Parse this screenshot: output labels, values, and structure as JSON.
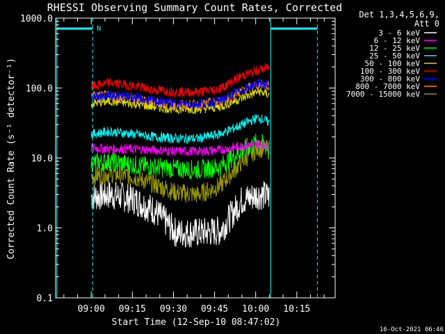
{
  "chart_data": {
    "type": "line",
    "title": "RHESSI Observing Summary Count Rates, Corrected",
    "xlabel": "Start Time (12-Sep-10 08:47:02)",
    "ylabel": "Corrected Count Rate (s⁻¹ detector⁻¹)",
    "yscale": "log",
    "ylim": [
      0.1,
      1000
    ],
    "xlim_min_after_start": [
      0,
      102
    ],
    "ytick_labels": [
      "0.1",
      "1.0",
      "10.0",
      "100.0",
      "1000.0"
    ],
    "xtick_labels": [
      "09:00",
      "09:15",
      "09:30",
      "09:45",
      "10:00",
      "10:15"
    ],
    "xtick_min_after_start": [
      13,
      28,
      43,
      58,
      73,
      88
    ],
    "grid": false,
    "legend_position": "top-right",
    "legend_header": [
      "Det 1,3,4,5,6,9,",
      "Att 0"
    ],
    "footer_timestamp": "16-Oct-2021 06:46",
    "night_marker": "N",
    "series": [
      {
        "name": "3 - 6 keV",
        "color": "#ffffff",
        "x": [
          13,
          20,
          28,
          36,
          44,
          52,
          60,
          68,
          74,
          78
        ],
        "values": [
          2.8,
          3.0,
          2.6,
          1.8,
          0.85,
          0.85,
          0.9,
          2.5,
          3.0,
          2.8
        ]
      },
      {
        "name": "6 - 12 keV",
        "color": "#ff00ff",
        "x": [
          13,
          20,
          28,
          36,
          44,
          52,
          60,
          68,
          74,
          78
        ],
        "values": [
          14,
          13.5,
          13.5,
          13,
          12.5,
          12.5,
          13,
          15,
          16,
          15
        ]
      },
      {
        "name": "12 - 25 keV",
        "color": "#00ff00",
        "x": [
          13,
          20,
          28,
          36,
          44,
          52,
          60,
          68,
          74,
          78
        ],
        "values": [
          8.5,
          9,
          8,
          7.5,
          7,
          6.8,
          7.5,
          13,
          17,
          14
        ]
      },
      {
        "name": "25 - 50 keV",
        "color": "#00ffff",
        "x": [
          13,
          20,
          28,
          36,
          44,
          52,
          60,
          68,
          74,
          78
        ],
        "values": [
          22,
          24,
          22,
          20,
          19,
          19,
          22,
          30,
          38,
          32
        ]
      },
      {
        "name": "50 - 100 keV",
        "color": "#dddd00",
        "x": [
          13,
          20,
          28,
          36,
          44,
          52,
          60,
          68,
          74,
          78
        ],
        "values": [
          60,
          65,
          60,
          54,
          50,
          50,
          54,
          72,
          90,
          80
        ]
      },
      {
        "name": "100 - 300 keV",
        "color": "#ff0000",
        "x": [
          13,
          20,
          28,
          36,
          44,
          52,
          60,
          68,
          74,
          78
        ],
        "values": [
          105,
          120,
          108,
          95,
          88,
          88,
          98,
          150,
          180,
          200
        ]
      },
      {
        "name": "300 - 800 keV",
        "color": "#0000ff",
        "x": [
          13,
          20,
          28,
          36,
          44,
          52,
          60,
          68,
          74,
          78
        ],
        "values": [
          76,
          80,
          75,
          66,
          60,
          60,
          66,
          95,
          120,
          110
        ]
      },
      {
        "name": "800 - 7000 keV",
        "color": "#ff8800",
        "x": [
          13,
          20,
          28,
          36,
          44,
          52,
          60,
          68,
          74,
          78
        ],
        "values": [
          78,
          78,
          72,
          64,
          58,
          58,
          64,
          92,
          115,
          105
        ]
      },
      {
        "name": "7000 - 15000 keV",
        "color": "#999900",
        "x": [
          13,
          20,
          28,
          36,
          44,
          52,
          60,
          68,
          74,
          78
        ],
        "values": [
          5.5,
          6,
          5.5,
          4.2,
          3.2,
          3.0,
          4.0,
          9,
          14,
          13
        ]
      }
    ]
  }
}
